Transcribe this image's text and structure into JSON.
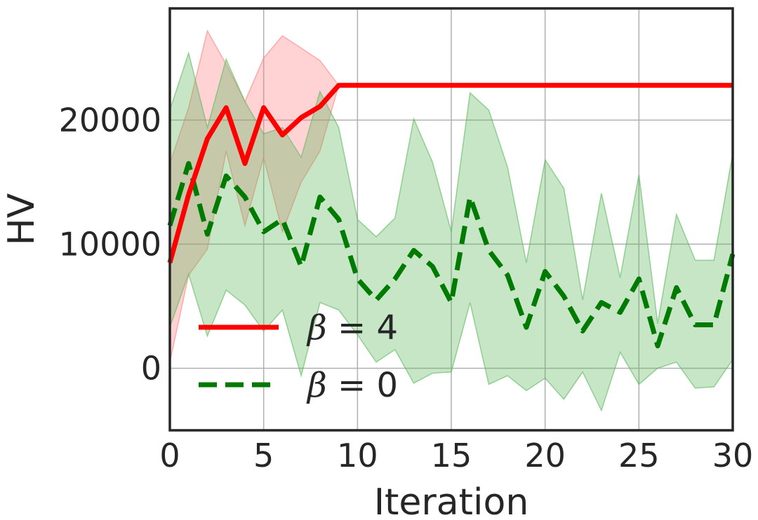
{
  "chart_data": {
    "type": "line",
    "xlabel": "Iteration",
    "ylabel": "HV",
    "xlim": [
      0,
      30
    ],
    "ylim": [
      -5000,
      29000
    ],
    "x_ticks": [
      0,
      5,
      10,
      15,
      20,
      25,
      30
    ],
    "y_ticks": [
      0,
      10000,
      20000
    ],
    "grid": true,
    "legend_position": "lower-left",
    "series": [
      {
        "name": "β = 4",
        "legend_symbol": "β",
        "legend_value": "= 4",
        "color": "#ff0000",
        "band_color": "#ff8080",
        "line_style": "solid",
        "x": [
          0,
          1,
          2,
          3,
          4,
          5,
          6,
          7,
          8,
          9,
          10,
          11,
          12,
          13,
          14,
          15,
          16,
          17,
          18,
          19,
          20,
          21,
          22,
          23,
          24,
          25,
          26,
          27,
          28,
          29,
          30
        ],
        "y": [
          8500,
          14000,
          18500,
          21000,
          16500,
          21000,
          18800,
          20200,
          21100,
          22800,
          22800,
          22800,
          22800,
          22800,
          22800,
          22800,
          22800,
          22800,
          22800,
          22800,
          22800,
          22800,
          22800,
          22800,
          22800,
          22800,
          22800,
          22800,
          22800,
          22800,
          22800
        ],
        "band_upper": [
          16500,
          21000,
          27200,
          24500,
          21500,
          25000,
          26800,
          25800,
          24800,
          22800,
          22800,
          22800,
          22800,
          22800,
          22800,
          22800,
          22800,
          22800,
          22800,
          22800,
          22800,
          22800,
          22800,
          22800,
          22800,
          22800,
          22800,
          22800,
          22800,
          22800,
          22800
        ],
        "band_lower": [
          500,
          7500,
          9600,
          17500,
          11500,
          17000,
          11000,
          15000,
          17500,
          22800,
          22800,
          22800,
          22800,
          22800,
          22800,
          22800,
          22800,
          22800,
          22800,
          22800,
          22800,
          22800,
          22800,
          22800,
          22800,
          22800,
          22800,
          22800,
          22800,
          22800,
          22800
        ]
      },
      {
        "name": "β = 0",
        "legend_symbol": "β",
        "legend_value": "= 0",
        "color": "#007a00",
        "band_color": "#5cb85c",
        "line_style": "dashed",
        "x": [
          0,
          1,
          2,
          3,
          4,
          5,
          6,
          7,
          8,
          9,
          10,
          11,
          12,
          13,
          14,
          15,
          16,
          17,
          18,
          19,
          20,
          21,
          22,
          23,
          24,
          25,
          26,
          27,
          28,
          29,
          30
        ],
        "y": [
          11500,
          16500,
          10800,
          15500,
          13800,
          11000,
          12000,
          8200,
          13800,
          12000,
          7200,
          5500,
          7200,
          9500,
          8200,
          5300,
          13800,
          9500,
          7500,
          3300,
          7800,
          5800,
          3000,
          5300,
          4500,
          7200,
          1800,
          6500,
          3500,
          3500,
          9200
        ],
        "band_upper": [
          20800,
          25400,
          19400,
          24900,
          21500,
          18900,
          19400,
          17000,
          22300,
          19400,
          12000,
          10600,
          12100,
          20100,
          16600,
          11000,
          22200,
          20800,
          16200,
          8500,
          16800,
          14500,
          5500,
          14100,
          7300,
          15600,
          3600,
          12400,
          8700,
          8700,
          17300
        ],
        "band_lower": [
          3300,
          7600,
          2600,
          6300,
          5100,
          3000,
          4700,
          -600,
          5300,
          4700,
          2700,
          500,
          1500,
          -1200,
          -400,
          -300,
          5300,
          -1300,
          -600,
          -1800,
          -800,
          -2500,
          -300,
          -3400,
          1300,
          -1300,
          0,
          500,
          -1600,
          -1500,
          700
        ]
      }
    ]
  }
}
